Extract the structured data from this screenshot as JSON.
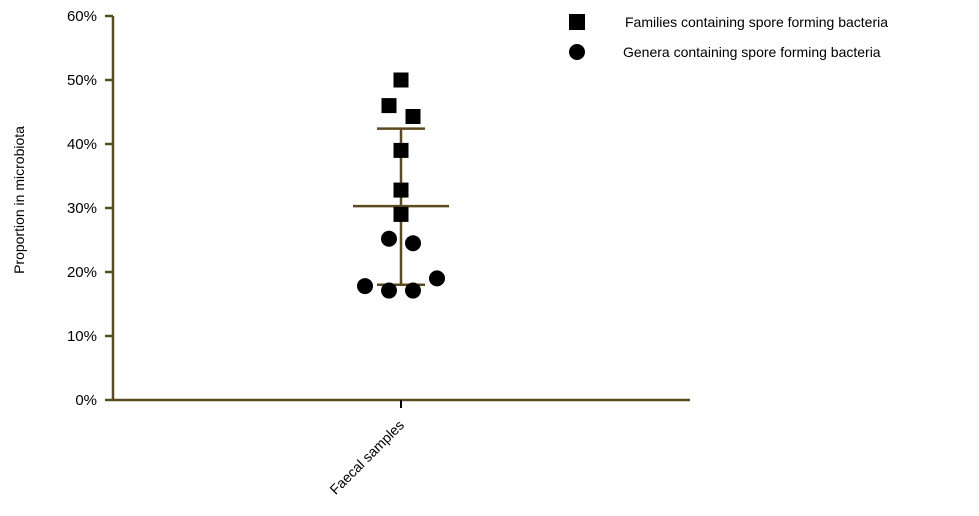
{
  "chart_data": {
    "type": "scatter",
    "ylabel": "Proportion in microbiota",
    "categories": [
      "Faecal samples"
    ],
    "ylim": [
      0,
      60
    ],
    "yticks": [
      "0%",
      "10%",
      "20%",
      "30%",
      "40%",
      "50%",
      "60%"
    ],
    "legend_position": "top-right",
    "axis_color": "#5a4a1e",
    "marker_color": "#000000",
    "series": [
      {
        "name": "Families containing spore forming bacteria",
        "marker": "square",
        "points": [
          {
            "jitter": 0.0,
            "y": 50.0
          },
          {
            "jitter": -0.4,
            "y": 46.0
          },
          {
            "jitter": 0.4,
            "y": 44.3
          },
          {
            "jitter": 0.0,
            "y": 39.0
          },
          {
            "jitter": 0.0,
            "y": 32.8
          },
          {
            "jitter": 0.0,
            "y": 29.0
          }
        ]
      },
      {
        "name": "Genera containing spore forming bacteria",
        "marker": "circle",
        "points": [
          {
            "jitter": -0.4,
            "y": 25.2
          },
          {
            "jitter": 0.4,
            "y": 24.5
          },
          {
            "jitter": 1.2,
            "y": 19.0
          },
          {
            "jitter": -1.2,
            "y": 17.8
          },
          {
            "jitter": -0.4,
            "y": 17.1
          },
          {
            "jitter": 0.4,
            "y": 17.1
          }
        ]
      }
    ],
    "summary": {
      "mean": 30.3,
      "upper": 42.4,
      "lower": 18.0
    }
  }
}
